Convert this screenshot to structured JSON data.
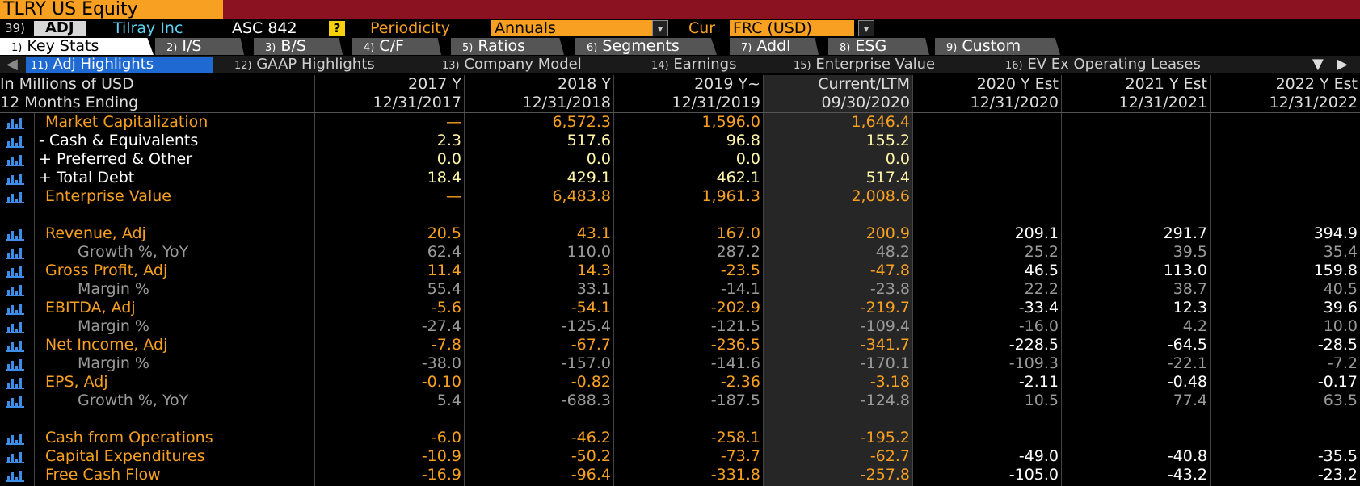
{
  "title_bar": {
    "ticker": "TLRY US Equity"
  },
  "toolbar": {
    "menu_number": "39)",
    "adj_button": "ADJ",
    "company": "Tilray Inc",
    "standard": "ASC 842",
    "help": "?",
    "periodicity_label": "Periodicity",
    "periodicity_value": "Annuals",
    "currency_label": "Cur",
    "currency_value": "FRC (USD)",
    "dropdown_glyph": "▾"
  },
  "tabs_primary": [
    {
      "num": "1)",
      "label": "Key Stats"
    },
    {
      "num": "2)",
      "label": "I/S"
    },
    {
      "num": "3)",
      "label": "B/S"
    },
    {
      "num": "4)",
      "label": "C/F"
    },
    {
      "num": "5)",
      "label": "Ratios"
    },
    {
      "num": "6)",
      "label": "Segments"
    },
    {
      "num": "7)",
      "label": "Addl"
    },
    {
      "num": "8)",
      "label": "ESG"
    },
    {
      "num": "9)",
      "label": "Custom"
    }
  ],
  "tabs_secondary": [
    {
      "num": "11)",
      "label": "Adj Highlights"
    },
    {
      "num": "12)",
      "label": "GAAP Highlights"
    },
    {
      "num": "13)",
      "label": "Company Model"
    },
    {
      "num": "14)",
      "label": "Earnings"
    },
    {
      "num": "15)",
      "label": "Enterprise Value"
    },
    {
      "num": "16)",
      "label": "EV Ex Operating Leases"
    }
  ],
  "nav": {
    "scroll_left": "◀",
    "filter": "▼",
    "scroll_right": "▶"
  },
  "header": {
    "units_label": "In Millions of USD",
    "period_label": "12 Months Ending",
    "columns": [
      {
        "period": "2017 Y",
        "date": "12/31/2017"
      },
      {
        "period": "2018 Y",
        "date": "12/31/2018"
      },
      {
        "period": "2019 Y~",
        "date": "12/31/2019"
      },
      {
        "period": "Current/LTM",
        "date": "09/30/2020"
      },
      {
        "period": "2020 Y Est",
        "date": "12/31/2020"
      },
      {
        "period": "2021 Y Est",
        "date": "12/31/2021"
      },
      {
        "period": "2022 Y Est",
        "date": "12/31/2022"
      }
    ]
  },
  "rows": [
    {
      "label": "Market Capitalization",
      "style": "main",
      "values": [
        "—",
        "6,572.3",
        "1,596.0",
        "1,646.4",
        "",
        "",
        ""
      ]
    },
    {
      "label": "- Cash & Equivalents",
      "style": "sign",
      "values": [
        "2.3",
        "517.6",
        "96.8",
        "155.2",
        "",
        "",
        ""
      ]
    },
    {
      "label": "+ Preferred & Other",
      "style": "sign",
      "values": [
        "0.0",
        "0.0",
        "0.0",
        "0.0",
        "",
        "",
        ""
      ]
    },
    {
      "label": "+ Total Debt",
      "style": "sign",
      "values": [
        "18.4",
        "429.1",
        "462.1",
        "517.4",
        "",
        "",
        ""
      ]
    },
    {
      "label": "Enterprise Value",
      "style": "main",
      "values": [
        "—",
        "6,483.8",
        "1,961.3",
        "2,008.6",
        "",
        "",
        ""
      ]
    },
    {
      "label": "Revenue, Adj",
      "style": "main",
      "values": [
        "20.5",
        "43.1",
        "167.0",
        "200.9",
        "209.1",
        "291.7",
        "394.9"
      ]
    },
    {
      "label": "Growth %, YoY",
      "style": "sub",
      "values": [
        "62.4",
        "110.0",
        "287.2",
        "48.2",
        "25.2",
        "39.5",
        "35.4"
      ]
    },
    {
      "label": "Gross Profit, Adj",
      "style": "main",
      "values": [
        "11.4",
        "14.3",
        "-23.5",
        "-47.8",
        "46.5",
        "113.0",
        "159.8"
      ]
    },
    {
      "label": "Margin %",
      "style": "sub",
      "values": [
        "55.4",
        "33.1",
        "-14.1",
        "-23.8",
        "22.2",
        "38.7",
        "40.5"
      ]
    },
    {
      "label": "EBITDA, Adj",
      "style": "main",
      "values": [
        "-5.6",
        "-54.1",
        "-202.9",
        "-219.7",
        "-33.4",
        "12.3",
        "39.6"
      ]
    },
    {
      "label": "Margin %",
      "style": "sub",
      "values": [
        "-27.4",
        "-125.4",
        "-121.5",
        "-109.4",
        "-16.0",
        "4.2",
        "10.0"
      ]
    },
    {
      "label": "Net Income, Adj",
      "style": "main",
      "values": [
        "-7.8",
        "-67.7",
        "-236.5",
        "-341.7",
        "-228.5",
        "-64.5",
        "-28.5"
      ]
    },
    {
      "label": "Margin %",
      "style": "sub",
      "values": [
        "-38.0",
        "-157.0",
        "-141.6",
        "-170.1",
        "-109.3",
        "-22.1",
        "-7.2"
      ]
    },
    {
      "label": "EPS, Adj",
      "style": "main",
      "values": [
        "-0.10",
        "-0.82",
        "-2.36",
        "-3.18",
        "-2.11",
        "-0.48",
        "-0.17"
      ]
    },
    {
      "label": "Growth %, YoY",
      "style": "sub",
      "values": [
        "5.4",
        "-688.3",
        "-187.5",
        "-124.8",
        "10.5",
        "77.4",
        "63.5"
      ]
    },
    {
      "label": "Cash from Operations",
      "style": "main",
      "values": [
        "-6.0",
        "-46.2",
        "-258.1",
        "-195.2",
        "",
        "",
        ""
      ]
    },
    {
      "label": "Capital Expenditures",
      "style": "main",
      "values": [
        "-10.9",
        "-50.2",
        "-73.7",
        "-62.7",
        "-49.0",
        "-40.8",
        "-35.5"
      ]
    },
    {
      "label": "Free Cash Flow",
      "style": "main",
      "values": [
        "-16.9",
        "-96.4",
        "-331.8",
        "-257.8",
        "-105.0",
        "-43.2",
        "-23.2"
      ]
    }
  ],
  "colors": {
    "title_bg": "#8b1220",
    "ticker_bg": "#f7a021",
    "accent_orange": "#f7a021",
    "tab_active_bg": "#1f6ad2",
    "chart_icon": "#3d8ee8"
  }
}
